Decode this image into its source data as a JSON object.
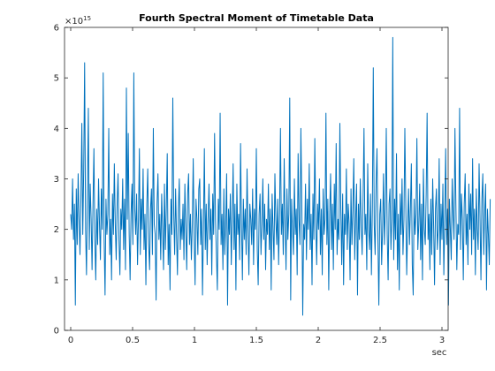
{
  "chart_data": {
    "type": "line",
    "title": "Fourth Spectral Moment of Timetable Data",
    "xlabel": "sec",
    "ylabel": "",
    "y_multiplier": "×10",
    "y_exponent": "15",
    "xlim": [
      -0.05,
      3.05
    ],
    "ylim": [
      0,
      6
    ],
    "x_ticks": [
      0,
      0.5,
      1,
      1.5,
      2,
      2.5,
      3
    ],
    "x_tick_labels": [
      "0",
      "0.5",
      "1",
      "1.5",
      "2",
      "2.5",
      "3"
    ],
    "y_ticks": [
      0,
      1,
      2,
      3,
      4,
      5,
      6
    ],
    "y_tick_labels": [
      "0",
      "1",
      "2",
      "3",
      "4",
      "5",
      "6"
    ],
    "grid": false,
    "line_color": "#0072bd",
    "series": [
      {
        "x_start": 0.0,
        "x_step": 0.0075,
        "values": [
          2.3,
          2.0,
          3.0,
          1.8,
          2.5,
          0.5,
          2.8,
          1.7,
          3.1,
          2.2,
          1.5,
          2.6,
          4.1,
          1.9,
          3.2,
          5.3,
          2.0,
          1.1,
          2.7,
          4.4,
          1.6,
          2.9,
          2.2,
          1.2,
          2.5,
          3.6,
          1.8,
          1.0,
          2.4,
          1.7,
          3.0,
          2.1,
          1.4,
          2.8,
          2.0,
          5.1,
          1.8,
          0.7,
          2.6,
          1.9,
          2.3,
          4.0,
          1.5,
          2.2,
          1.0,
          2.7,
          1.9,
          3.3,
          2.1,
          1.4,
          2.5,
          3.1,
          1.8,
          1.1,
          2.4,
          2.0,
          3.0,
          1.6,
          2.6,
          1.2,
          4.8,
          2.2,
          3.9,
          1.9,
          1.0,
          2.3,
          2.9,
          1.7,
          5.1,
          2.4,
          1.9,
          2.7,
          1.3,
          2.2,
          3.6,
          1.5,
          2.6,
          2.0,
          3.2,
          1.6,
          2.3,
          0.9,
          2.5,
          3.2,
          1.7,
          1.2,
          2.4,
          2.8,
          1.5,
          4.0,
          2.1,
          1.9,
          0.6,
          2.5,
          3.1,
          1.8,
          2.3,
          1.4,
          2.7,
          2.0,
          1.2,
          2.9,
          1.6,
          2.4,
          3.5,
          1.3,
          2.1,
          0.8,
          2.6,
          1.9,
          4.6,
          2.3,
          1.5,
          2.8,
          1.9,
          1.1,
          2.4,
          3.0,
          1.6,
          2.2,
          1.8,
          2.5,
          1.4,
          2.9,
          2.0,
          1.2,
          2.7,
          3.1,
          1.7,
          2.3,
          1.4,
          2.1,
          3.4,
          1.9,
          0.9,
          2.6,
          2.2,
          1.5,
          2.8,
          3.0,
          1.7,
          2.4,
          0.7,
          2.0,
          3.6,
          1.6,
          2.5,
          1.3,
          2.2,
          2.9,
          1.8,
          2.4,
          1.1,
          2.7,
          1.9,
          3.9,
          2.2,
          1.5,
          0.8,
          2.6,
          2.0,
          4.3,
          1.7,
          2.3,
          1.2,
          2.8,
          1.5,
          2.1,
          3.1,
          0.5,
          2.4,
          1.9,
          2.7,
          1.3,
          2.2,
          3.3,
          1.6,
          2.5,
          0.8,
          2.9,
          1.9,
          2.3,
          1.4,
          3.7,
          2.1,
          1.0,
          2.6,
          1.8,
          2.4,
          1.5,
          3.2,
          2.0,
          1.1,
          2.5,
          2.2,
          1.7,
          2.8,
          1.3,
          2.4,
          2.0,
          3.6,
          1.6,
          0.9,
          2.3,
          2.7,
          1.5,
          2.1,
          3.0,
          1.8,
          2.5,
          1.2,
          2.2,
          1.9,
          2.9,
          1.6,
          2.4,
          0.8,
          2.7,
          2.0,
          1.4,
          3.1,
          2.2,
          1.7,
          2.6,
          1.3,
          2.3,
          4.0,
          1.9,
          2.5,
          1.5,
          3.4,
          2.1,
          1.2,
          2.8,
          1.8,
          2.3,
          4.6,
          0.6,
          2.6,
          2.0,
          1.5,
          3.0,
          1.9,
          2.4,
          1.1,
          3.5,
          2.2,
          1.7,
          4.0,
          2.5,
          0.3,
          2.1,
          1.8,
          2.9,
          1.4,
          2.6,
          2.0,
          3.3,
          1.6,
          2.3,
          0.9,
          2.7,
          1.8,
          3.8,
          2.2,
          1.3,
          2.5,
          2.0,
          3.0,
          1.5,
          2.4,
          1.1,
          2.8,
          1.9,
          2.2,
          4.3,
          1.7,
          2.6,
          0.8,
          2.3,
          3.1,
          1.6,
          2.5,
          1.2,
          2.9,
          2.0,
          3.7,
          1.5,
          2.2,
          1.8,
          4.1,
          2.4,
          1.3,
          2.7,
          0.9,
          2.3,
          1.9,
          3.2,
          1.6,
          2.5,
          2.1,
          1.0,
          2.8,
          1.7,
          2.4,
          3.4,
          1.4,
          2.2,
          2.9,
          0.7,
          2.5,
          1.8,
          3.0,
          2.1,
          1.5,
          2.6,
          4.0,
          1.9,
          2.3,
          1.2,
          3.3,
          2.0,
          1.6,
          2.7,
          1.1,
          2.4,
          5.2,
          2.1,
          1.5,
          2.9,
          3.6,
          1.8,
          0.5,
          2.3,
          2.6,
          1.3,
          2.0,
          3.1,
          1.7,
          2.4,
          4.0,
          1.9,
          1.0,
          2.5,
          2.8,
          1.6,
          2.2,
          5.8,
          1.4,
          2.6,
          1.8,
          3.5,
          1.2,
          2.3,
          0.8,
          2.7,
          1.9,
          3.0,
          1.5,
          2.2,
          4.0,
          2.5,
          1.1,
          2.0,
          2.8,
          1.7,
          2.4,
          3.3,
          1.3,
          0.7,
          2.6,
          1.9,
          2.3,
          3.8,
          1.6,
          2.1,
          2.9,
          1.4,
          2.5,
          1.0,
          3.2,
          2.0,
          1.7,
          2.7,
          4.3,
          1.8,
          2.3,
          1.2,
          2.6,
          1.5,
          3.0,
          2.1,
          0.9,
          2.4,
          2.8,
          1.6,
          2.0,
          3.4,
          1.3,
          2.5,
          1.8,
          2.9,
          1.1,
          2.2,
          3.6,
          1.7,
          2.4,
          0.5,
          2.6,
          2.0,
          1.4,
          3.0,
          2.3,
          1.8,
          4.0,
          2.5,
          1.2,
          2.1,
          1.9,
          4.4,
          1.6,
          2.7,
          2.2,
          1.0,
          2.5,
          3.1,
          1.7,
          2.3,
          1.3,
          2.9,
          2.0,
          2.7,
          1.5,
          3.4,
          1.8,
          2.4,
          1.1,
          2.8,
          2.0,
          1.6,
          3.3,
          2.2,
          1.0,
          2.6,
          3.1,
          1.5,
          2.3,
          2.9,
          0.8,
          2.4,
          1.9,
          1.3,
          2.6
        ]
      }
    ]
  }
}
